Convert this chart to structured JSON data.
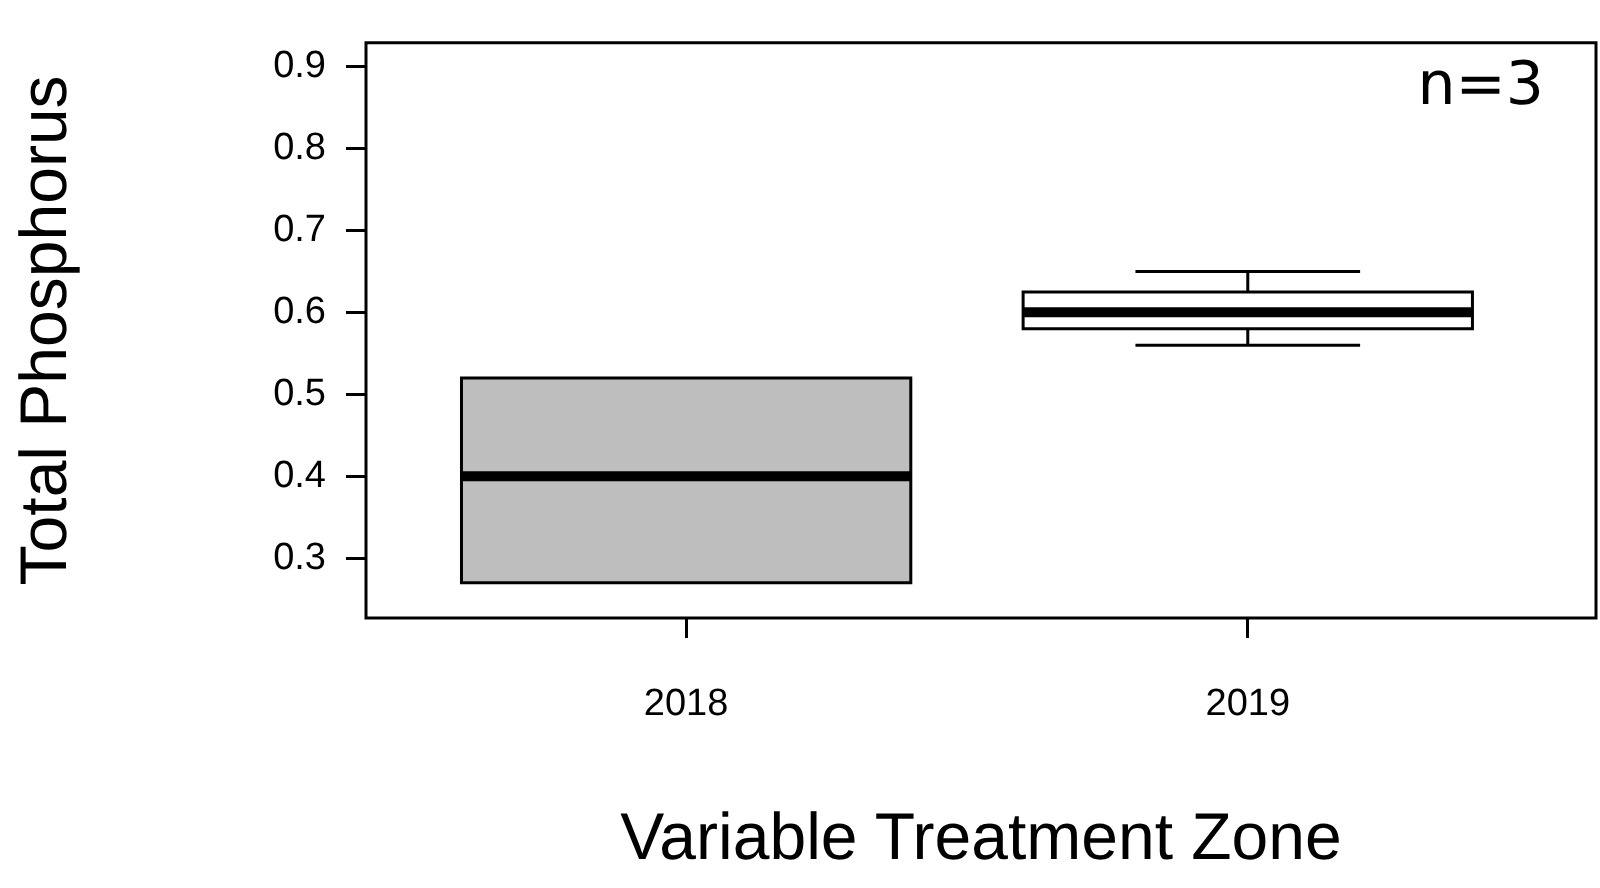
{
  "chart_data": {
    "type": "box",
    "xlabel": "Variable Treatment Zone",
    "ylabel": "Total Phosphorus",
    "categories": [
      "2018",
      "2019"
    ],
    "boxes": [
      {
        "low": 0.27,
        "q1": 0.27,
        "median": 0.4,
        "q3": 0.52,
        "high": 0.52
      },
      {
        "low": 0.56,
        "q1": 0.58,
        "median": 0.6,
        "q3": 0.625,
        "high": 0.65
      }
    ],
    "colors": [
      "#bebebe",
      "#ffffff"
    ],
    "ylim": [
      0.227,
      0.929
    ],
    "yticks": [
      0.3,
      0.4,
      0.5,
      0.6,
      0.7,
      0.8,
      0.9
    ],
    "annotations": [
      "n=3"
    ]
  }
}
